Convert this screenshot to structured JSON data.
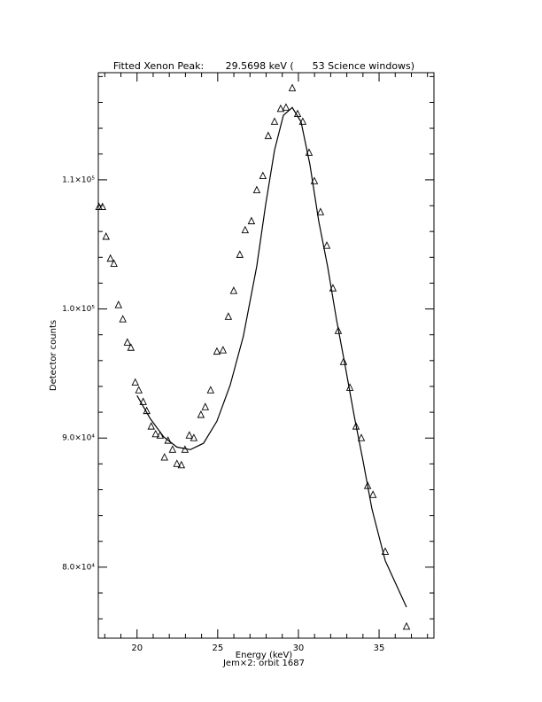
{
  "chart_data": {
    "type": "scatter",
    "title": "Fitted Xenon Peak:       29.5698 keV (      53 Science windows)",
    "x_label": "Energy (keV)",
    "subtitle": "Jem×2: orbit 1687",
    "y_label": "Detector counts",
    "xlim": [
      17.6,
      38.4
    ],
    "ylim": [
      74500,
      118300
    ],
    "xticks": [
      20,
      25,
      30,
      35
    ],
    "yticks": [
      {
        "value": 80000,
        "label": "8.0×10⁴"
      },
      {
        "value": 90000,
        "label": "9.0×10⁴"
      },
      {
        "value": 100000,
        "label": "1.0×10⁵"
      },
      {
        "value": 110000,
        "label": "1.1×10⁵"
      }
    ],
    "xminorticks": [
      18,
      19,
      21,
      22,
      23,
      24,
      26,
      27,
      28,
      29,
      31,
      32,
      33,
      34,
      36,
      37,
      38
    ],
    "yminorticks": [
      76000,
      78000,
      82000,
      84000,
      86000,
      88000,
      92000,
      94000,
      96000,
      98000,
      102000,
      104000,
      106000,
      108000,
      112000,
      114000,
      116000,
      118000
    ],
    "series": [
      {
        "marker": "triangle",
        "color": "#000000",
        "x": [
          17.64,
          17.86,
          18.08,
          18.35,
          18.57,
          18.85,
          19.12,
          19.4,
          19.62,
          19.89,
          20.11,
          20.38,
          20.6,
          20.88,
          21.15,
          21.43,
          21.7,
          21.92,
          22.2,
          22.47,
          22.75,
          22.97,
          23.24,
          23.52,
          23.96,
          24.23,
          24.56,
          24.95,
          25.33,
          25.66,
          25.99,
          26.37,
          26.7,
          27.09,
          27.42,
          27.8,
          28.13,
          28.52,
          28.9,
          29.23,
          29.62,
          29.95,
          30.27,
          30.66,
          30.99,
          31.37,
          31.76,
          32.14,
          32.47,
          32.8,
          33.19,
          33.57,
          33.9,
          34.29,
          34.62,
          35.38,
          36.7
        ],
        "values": [
          107900,
          107900,
          105600,
          103900,
          103500,
          100300,
          99200,
          97400,
          97000,
          94300,
          93700,
          92800,
          92100,
          90900,
          90300,
          90200,
          88500,
          89800,
          89100,
          88000,
          87900,
          89100,
          90200,
          90000,
          91800,
          92400,
          93700,
          96700,
          96800,
          99400,
          101400,
          104200,
          106100,
          106800,
          109200,
          110300,
          113400,
          114500,
          115500,
          115600,
          117100,
          115100,
          114500,
          112100,
          109900,
          107500,
          104900,
          101600,
          98300,
          95900,
          93900,
          90900,
          90000,
          86300,
          85600,
          81200,
          75400
        ]
      },
      {
        "marker": "line",
        "color": "#000000",
        "x": [
          20,
          20.82,
          21.65,
          22.47,
          23.3,
          24.12,
          24.95,
          25.77,
          26.59,
          27.42,
          27.97,
          28.52,
          29.07,
          29.62,
          30.16,
          30.71,
          31.26,
          31.81,
          32.36,
          32.91,
          33.46,
          34.01,
          34.56,
          35.38,
          36.7
        ],
        "values": [
          93300,
          91500,
          90100,
          89300,
          89100,
          89600,
          91300,
          94100,
          97900,
          103300,
          108100,
          112300,
          115000,
          115600,
          114500,
          111200,
          106800,
          103300,
          99200,
          95500,
          91700,
          88200,
          84500,
          80500,
          76900
        ]
      }
    ]
  }
}
